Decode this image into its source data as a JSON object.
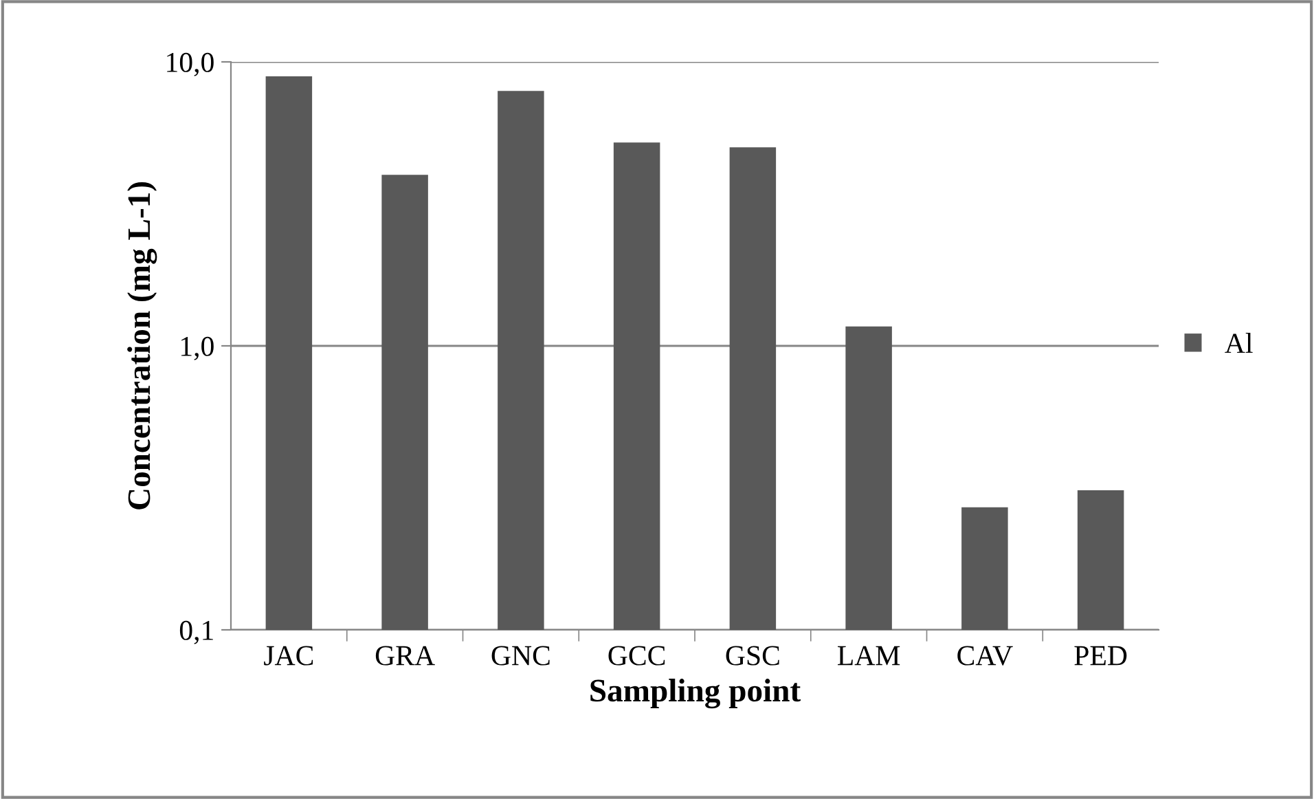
{
  "chart_data": {
    "type": "bar",
    "xlabel": "Sampling point",
    "ylabel": "Concentration (mg L-1)",
    "categories": [
      "JAC",
      "GRA",
      "GNC",
      "GCC",
      "GSC",
      "LAM",
      "CAV",
      "PED"
    ],
    "series": [
      {
        "name": "Al",
        "color": "#595959",
        "values": [
          8.9,
          4.0,
          7.9,
          5.2,
          5.0,
          1.17,
          0.27,
          0.31
        ]
      }
    ],
    "log": true,
    "ylim": [
      0.1,
      10
    ],
    "yticks": [
      {
        "value": 0.1,
        "label": "0,1"
      },
      {
        "value": 1,
        "label": "1,0"
      },
      {
        "value": 10,
        "label": "10,0"
      }
    ],
    "grid": "y",
    "legend": "right"
  }
}
